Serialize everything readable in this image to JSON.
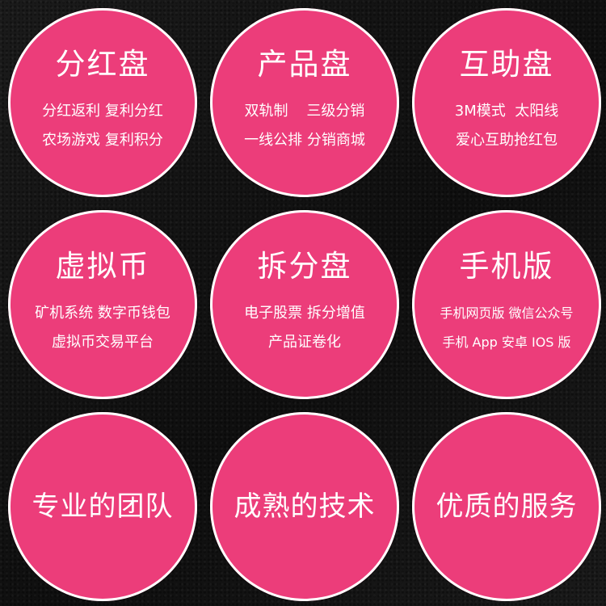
{
  "circles": [
    {
      "title": "分红盘",
      "lines": [
        "分红返利 复利分红",
        "农场游戏 复利积分"
      ]
    },
    {
      "title": "产品盘",
      "lines": [
        "双轨制    三级分销",
        "一线公排 分销商城"
      ]
    },
    {
      "title": "互助盘",
      "lines": [
        "3M模式  太阳线",
        "爱心互助抢红包"
      ]
    },
    {
      "title": "虚拟币",
      "lines": [
        "矿机系统 数字币钱包",
        "虚拟币交易平台"
      ]
    },
    {
      "title": "拆分盘",
      "lines": [
        "电子股票 拆分增值",
        "产品证卷化"
      ]
    },
    {
      "title": "手机版",
      "lines": [
        "手机网页版 微信公众号",
        "手机 App 安卓 IOS 版"
      ]
    }
  ],
  "features": [
    "专业的团队",
    "成熟的技术",
    "优质的服务"
  ],
  "colors": {
    "circle": "#ec3d7a",
    "border": "#ffffff",
    "background": "#151515"
  }
}
